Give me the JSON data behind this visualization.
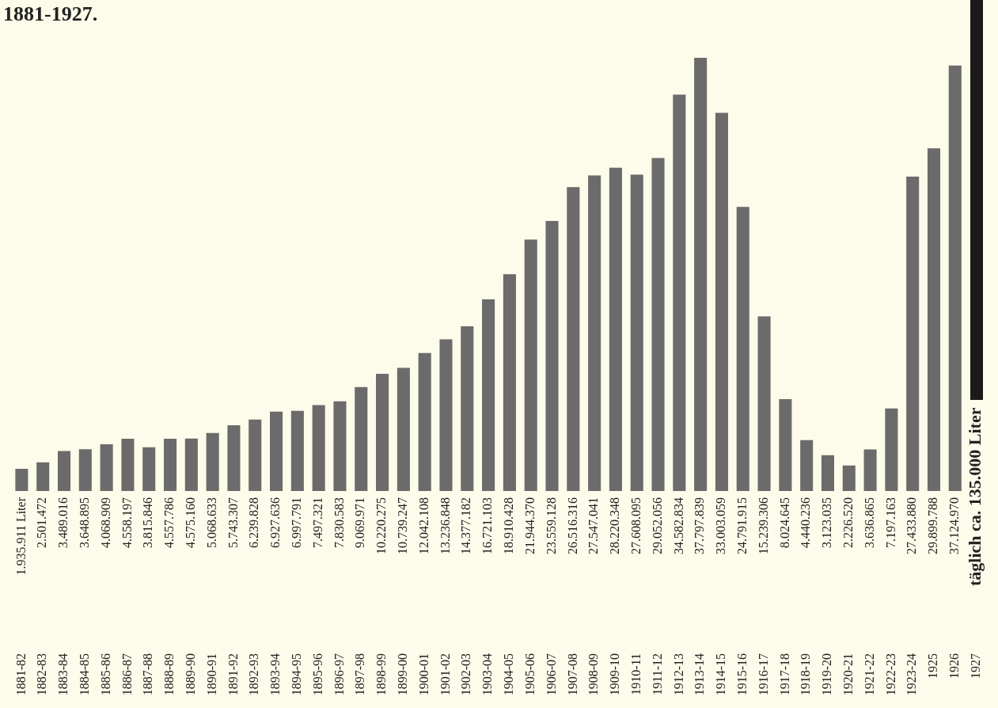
{
  "chart_data": {
    "type": "bar",
    "title": "1881-1927.",
    "categories": [
      "1881-82",
      "1882-83",
      "1883-84",
      "1884-85",
      "1885-86",
      "1886-87",
      "1887-88",
      "1888-89",
      "1889-90",
      "1890-91",
      "1891-92",
      "1892-93",
      "1893-94",
      "1894-95",
      "1895-96",
      "1896-97",
      "1897-98",
      "1898-99",
      "1899-00",
      "1900-01",
      "1901-02",
      "1902-03",
      "1903-04",
      "1904-05",
      "1905-06",
      "1906-07",
      "1907-08",
      "1908-09",
      "1909-10",
      "1910-11",
      "1911-12",
      "1912-13",
      "1913-14",
      "1914-15",
      "1915-16",
      "1916-17",
      "1917-18",
      "1918-19",
      "1919-20",
      "1920-21",
      "1921-22",
      "1922-23",
      "1923-24",
      "1925",
      "1926",
      "1927"
    ],
    "values": [
      1935911,
      2501472,
      3489016,
      3648895,
      4068909,
      4558197,
      3815846,
      4557786,
      4575160,
      5068633,
      5743307,
      6239828,
      6927636,
      6997791,
      7497321,
      7830583,
      9069971,
      10220275,
      10739247,
      12042108,
      13236848,
      14377182,
      16721103,
      18910428,
      21944370,
      23559128,
      26516316,
      27547041,
      28220348,
      27608095,
      29052056,
      34582834,
      37797839,
      33003059,
      24791915,
      15239306,
      8024645,
      4440236,
      3123035,
      2226520,
      3636865,
      7197163,
      27433880,
      29899788,
      37124970,
      null
    ],
    "value_labels": [
      "1.935.911 Liter",
      "2.501.472",
      "3.489.016",
      "3.648.895",
      "4.068.909",
      "4.558.197",
      "3.815.846",
      "4.557.786",
      "4.575.160",
      "5.068.633",
      "5.743.307",
      "6.239.828",
      "6.927.636",
      "6.997.791",
      "7.497.321",
      "7.830.583",
      "9.069.971",
      "10.220.275",
      "10.739.247",
      "12.042.108",
      "13.236.848",
      "14.377.182",
      "16.721.103",
      "18.910.428",
      "21.944.370",
      "23.559.128",
      "26.516.316",
      "27.547.041",
      "28.220.348",
      "27.608.095",
      "29.052.056",
      "34.582.834",
      "37.797.839",
      "33.003.059",
      "24.791.915",
      "15.239.306",
      "8.024.645",
      "4.440.236",
      "3.123.035",
      "2.226.520",
      "3.636.865",
      "7.197.163",
      "27.433.880",
      "29.899.788",
      "37.124.970",
      "täglich ca. 135.000 Liter"
    ],
    "color": "#6b6b6b",
    "legend": false
  }
}
